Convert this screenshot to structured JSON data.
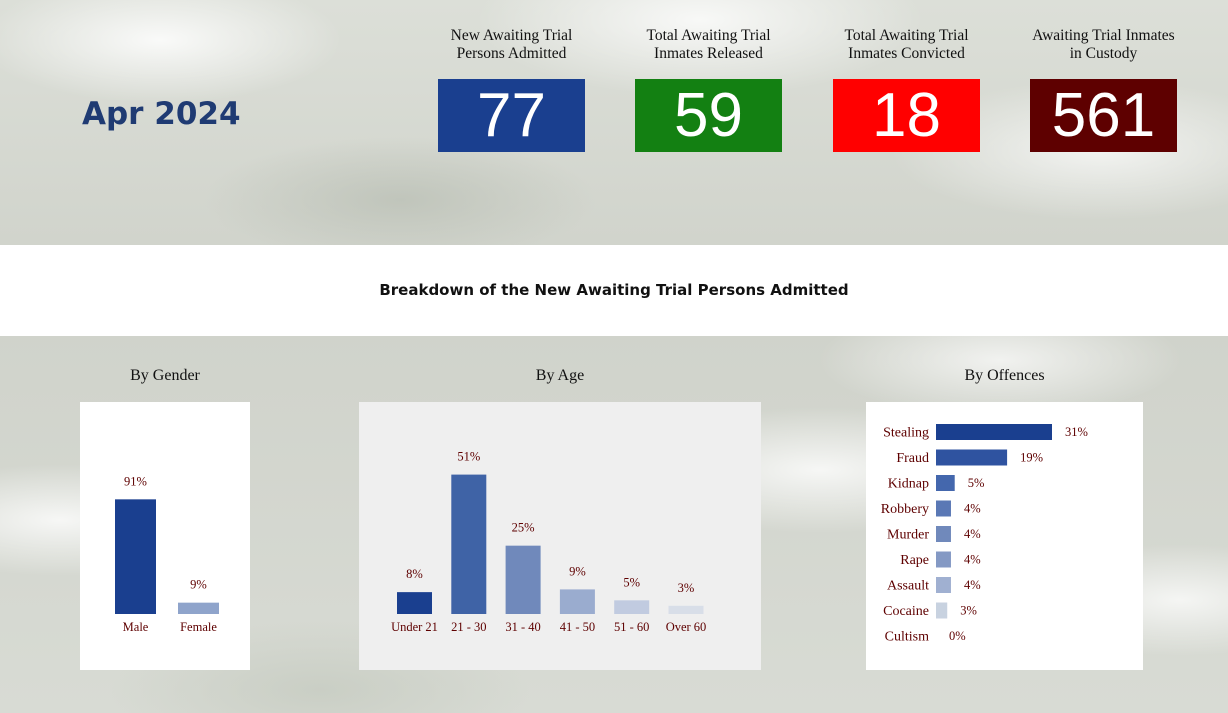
{
  "period": "Apr 2024",
  "kpis": [
    {
      "label": "New Awaiting Trial Persons Admitted",
      "value": "77",
      "color": "#1a3f8f"
    },
    {
      "label": "Total Awaiting Trial Inmates Released",
      "value": "59",
      "color": "#138012"
    },
    {
      "label": "Total Awaiting Trial Inmates Convicted",
      "value": "18",
      "color": "#ff0000"
    },
    {
      "label": "Awaiting Trial Inmates in Custody",
      "value": "561",
      "color": "#5e0000"
    }
  ],
  "breakdown_title": "Breakdown of the New Awaiting Trial Persons Admitted",
  "chart_data": [
    {
      "type": "bar",
      "title": "By Gender",
      "categories": [
        "Male",
        "Female"
      ],
      "values": [
        91,
        9
      ],
      "labels": [
        "91%",
        "9%"
      ],
      "colors": [
        "#1a3f8f",
        "#8fa4cb"
      ],
      "ylim": [
        0,
        100
      ]
    },
    {
      "type": "bar",
      "title": "By Age",
      "categories": [
        "Under 21",
        "21 - 30",
        "31 - 40",
        "41 - 50",
        "51 - 60",
        "Over 60"
      ],
      "values": [
        8,
        51,
        25,
        9,
        5,
        3
      ],
      "labels": [
        "8%",
        "51%",
        "25%",
        "9%",
        "5%",
        "3%"
      ],
      "colors": [
        "#1a3f8f",
        "#3f63a6",
        "#7089bb",
        "#9aaccf",
        "#c1cbe0",
        "#d8dee8"
      ],
      "ylim": [
        0,
        60
      ]
    },
    {
      "type": "bar",
      "orientation": "horizontal",
      "title": "By Offences",
      "categories": [
        "Stealing",
        "Fraud",
        "Kidnap",
        "Robbery",
        "Murder",
        "Rape",
        "Assault",
        "Cocaine",
        "Cultism"
      ],
      "values": [
        31,
        19,
        5,
        4,
        4,
        4,
        4,
        3,
        0
      ],
      "labels": [
        "31%",
        "19%",
        "5%",
        "4%",
        "4%",
        "4%",
        "4%",
        "3%",
        "0%"
      ],
      "colors": [
        "#1a3f8f",
        "#2f53a0",
        "#4467ad",
        "#5a78b5",
        "#7089bb",
        "#8499c4",
        "#a0b0d1",
        "#c8d2e0",
        "#e0e6ee"
      ],
      "xlim": [
        0,
        31
      ]
    }
  ]
}
